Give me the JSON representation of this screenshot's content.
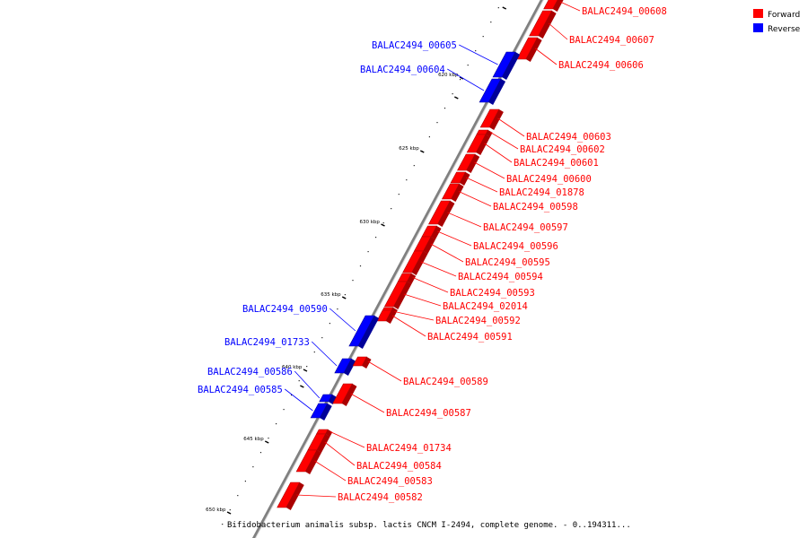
{
  "caption": "Bifidobacterium animalis subsp. lactis CNCM I-2494, complete genome. - 0..194311...",
  "colors": {
    "forward": "#ff0000",
    "forward_dark": "#aa0000",
    "reverse": "#0000ff",
    "reverse_dark": "#000099",
    "backbone": "#808080"
  },
  "legend": [
    {
      "label": "Forward",
      "color": "#ff0000"
    },
    {
      "label": "Reverse",
      "color": "#0000ff"
    }
  ],
  "ticks": [
    "620 kbp",
    "625 kbp",
    "630 kbp",
    "635 kbp",
    "640 kbp",
    "645 kbp",
    "650 kbp"
  ],
  "genes": [
    {
      "name": "BALAC2494_00608",
      "strand": "forward"
    },
    {
      "name": "BALAC2494_00607",
      "strand": "forward"
    },
    {
      "name": "BALAC2494_00606",
      "strand": "forward"
    },
    {
      "name": "BALAC2494_00605",
      "strand": "reverse"
    },
    {
      "name": "BALAC2494_00604",
      "strand": "reverse"
    },
    {
      "name": "BALAC2494_00603",
      "strand": "forward"
    },
    {
      "name": "BALAC2494_00602",
      "strand": "forward"
    },
    {
      "name": "BALAC2494_00601",
      "strand": "forward"
    },
    {
      "name": "BALAC2494_00600",
      "strand": "forward"
    },
    {
      "name": "BALAC2494_01878",
      "strand": "forward"
    },
    {
      "name": "BALAC2494_00598",
      "strand": "forward"
    },
    {
      "name": "BALAC2494_00597",
      "strand": "forward"
    },
    {
      "name": "BALAC2494_00596",
      "strand": "forward"
    },
    {
      "name": "BALAC2494_00595",
      "strand": "forward"
    },
    {
      "name": "BALAC2494_00594",
      "strand": "forward"
    },
    {
      "name": "BALAC2494_00593",
      "strand": "forward"
    },
    {
      "name": "BALAC2494_02014",
      "strand": "forward"
    },
    {
      "name": "BALAC2494_00592",
      "strand": "forward"
    },
    {
      "name": "BALAC2494_00591",
      "strand": "forward"
    },
    {
      "name": "BALAC2494_00590",
      "strand": "reverse"
    },
    {
      "name": "BALAC2494_01733",
      "strand": "reverse"
    },
    {
      "name": "BALAC2494_00589",
      "strand": "forward"
    },
    {
      "name": "BALAC2494_00586",
      "strand": "reverse"
    },
    {
      "name": "BALAC2494_00585",
      "strand": "reverse"
    },
    {
      "name": "BALAC2494_00587",
      "strand": "forward"
    },
    {
      "name": "BALAC2494_01734",
      "strand": "forward"
    },
    {
      "name": "BALAC2494_00584",
      "strand": "forward"
    },
    {
      "name": "BALAC2494_00583",
      "strand": "forward"
    },
    {
      "name": "BALAC2494_00582",
      "strand": "forward"
    }
  ]
}
